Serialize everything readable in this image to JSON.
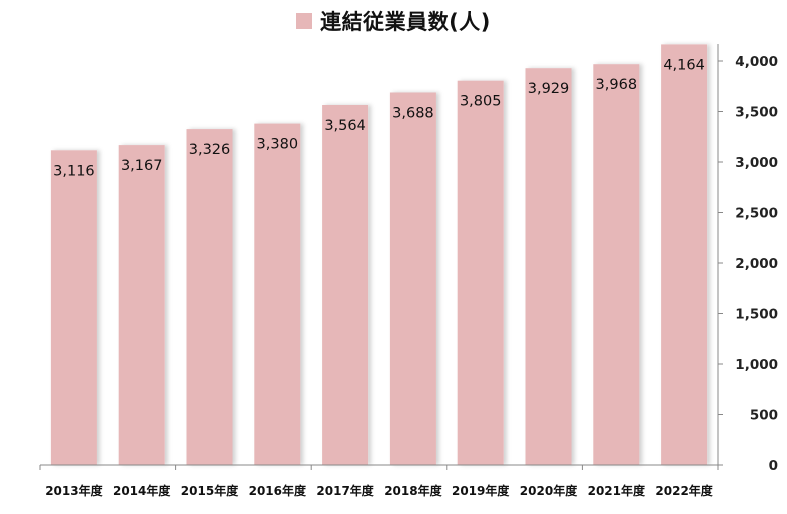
{
  "chart_data": {
    "type": "bar",
    "title": "",
    "legend": "top",
    "series": [
      {
        "name": "連結従業員数(人)",
        "color": "#e6b7b8",
        "values": [
          3116,
          3167,
          3326,
          3380,
          3564,
          3688,
          3805,
          3929,
          3968,
          4164
        ],
        "value_labels": [
          "3,116",
          "3,167",
          "3,326",
          "3,380",
          "3,564",
          "3,688",
          "3,805",
          "3,929",
          "3,968",
          "4,164"
        ]
      }
    ],
    "categories": [
      "2013年度",
      "2014年度",
      "2015年度",
      "2016年度",
      "2017年度",
      "2018年度",
      "2019年度",
      "2020年度",
      "2021年度",
      "2022年度"
    ],
    "yaxis": {
      "position": "right",
      "ylim": [
        0,
        4000
      ],
      "ticks": [
        0,
        500,
        1000,
        1500,
        2000,
        2500,
        3000,
        3500,
        4000
      ],
      "tick_labels": [
        "0",
        "500",
        "1,000",
        "1,500",
        "2,000",
        "2,500",
        "3,000",
        "3,500",
        "4,000"
      ]
    },
    "grid": false,
    "xlabel": "",
    "ylabel": ""
  }
}
